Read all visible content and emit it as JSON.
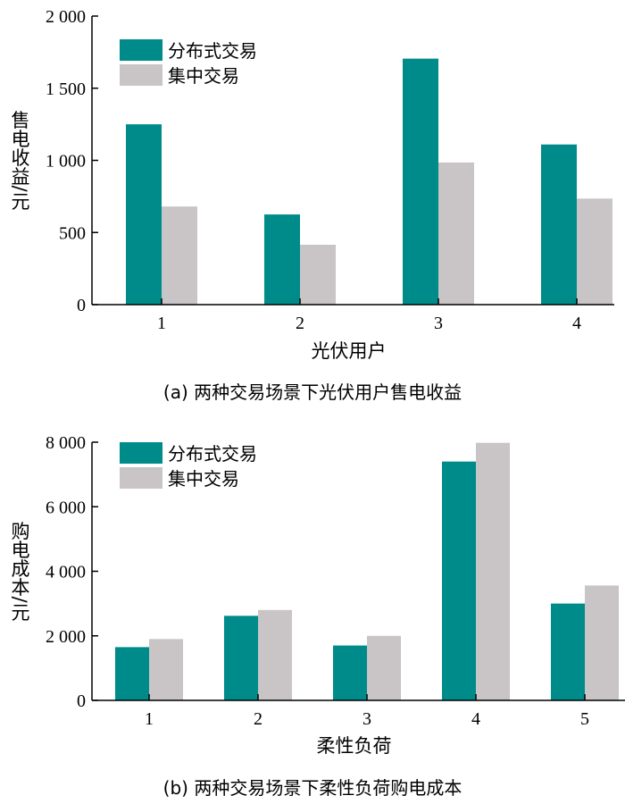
{
  "colors": {
    "distributed": "#008b8b",
    "centralized": "#c9c4c5",
    "axis": "#000000"
  },
  "chart_data": [
    {
      "type": "bar",
      "caption": "(a) 两种交易场景下光伏用户售电收益",
      "xlabel": "光伏用户",
      "ylabel": "售电收益/元",
      "categories": [
        "1",
        "2",
        "3",
        "4"
      ],
      "ylim": [
        0,
        2000
      ],
      "yticks": [
        0,
        500,
        1000,
        1500,
        2000
      ],
      "ytick_labels": [
        "0",
        "500",
        "1 000",
        "1 500",
        "2 000"
      ],
      "series": [
        {
          "name": "分布式交易",
          "values": [
            1250,
            625,
            1705,
            1110
          ]
        },
        {
          "name": "集中交易",
          "values": [
            680,
            415,
            985,
            735
          ]
        }
      ],
      "legend": "top-left",
      "grid": false
    },
    {
      "type": "bar",
      "caption": "(b) 两种交易场景下柔性负荷购电成本",
      "xlabel": "柔性负荷",
      "ylabel": "购电成本/元",
      "categories": [
        "1",
        "2",
        "3",
        "4",
        "5"
      ],
      "ylim": [
        0,
        8000
      ],
      "yticks": [
        0,
        2000,
        4000,
        6000,
        8000
      ],
      "ytick_labels": [
        "0",
        "2 000",
        "4 000",
        "6 000",
        "8 000"
      ],
      "series": [
        {
          "name": "分布式交易",
          "values": [
            1650,
            2620,
            1700,
            7400,
            3000
          ]
        },
        {
          "name": "集中交易",
          "values": [
            1900,
            2800,
            2000,
            7980,
            3560
          ]
        }
      ],
      "legend": "top-left",
      "grid": false
    }
  ]
}
